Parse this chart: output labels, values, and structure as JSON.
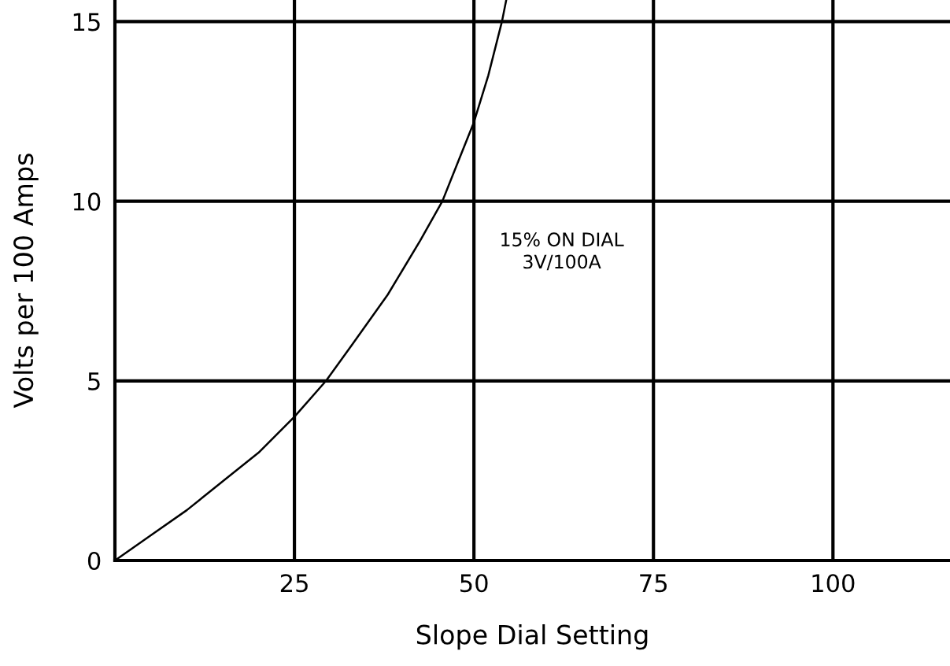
{
  "chart_data": {
    "type": "line",
    "xlabel": "Slope Dial Setting",
    "ylabel": "Volts per 100 Amps",
    "x": [
      0,
      5,
      10,
      15,
      20,
      25,
      29.4,
      33,
      38,
      42.5,
      45.6,
      48,
      50,
      52,
      53.9,
      54.5
    ],
    "series": [
      {
        "color": "#000000",
        "values": [
          0,
          0.7,
          1.4,
          2.2,
          3.0,
          4.0,
          5.0,
          6.0,
          7.4,
          8.9,
          10.0,
          11.2,
          12.2,
          13.5,
          15.0,
          15.6
        ]
      }
    ],
    "xlim": [
      0,
      116.3
    ],
    "ylim": [
      0,
      15.6
    ],
    "xticks": [
      25,
      50,
      75,
      100
    ],
    "yticks": [
      0,
      5,
      10,
      15
    ],
    "grid": true,
    "legend": false,
    "marker": "none",
    "line_style": "solid",
    "annotations": [
      "15% ON DIAL\n3V/100A"
    ]
  }
}
